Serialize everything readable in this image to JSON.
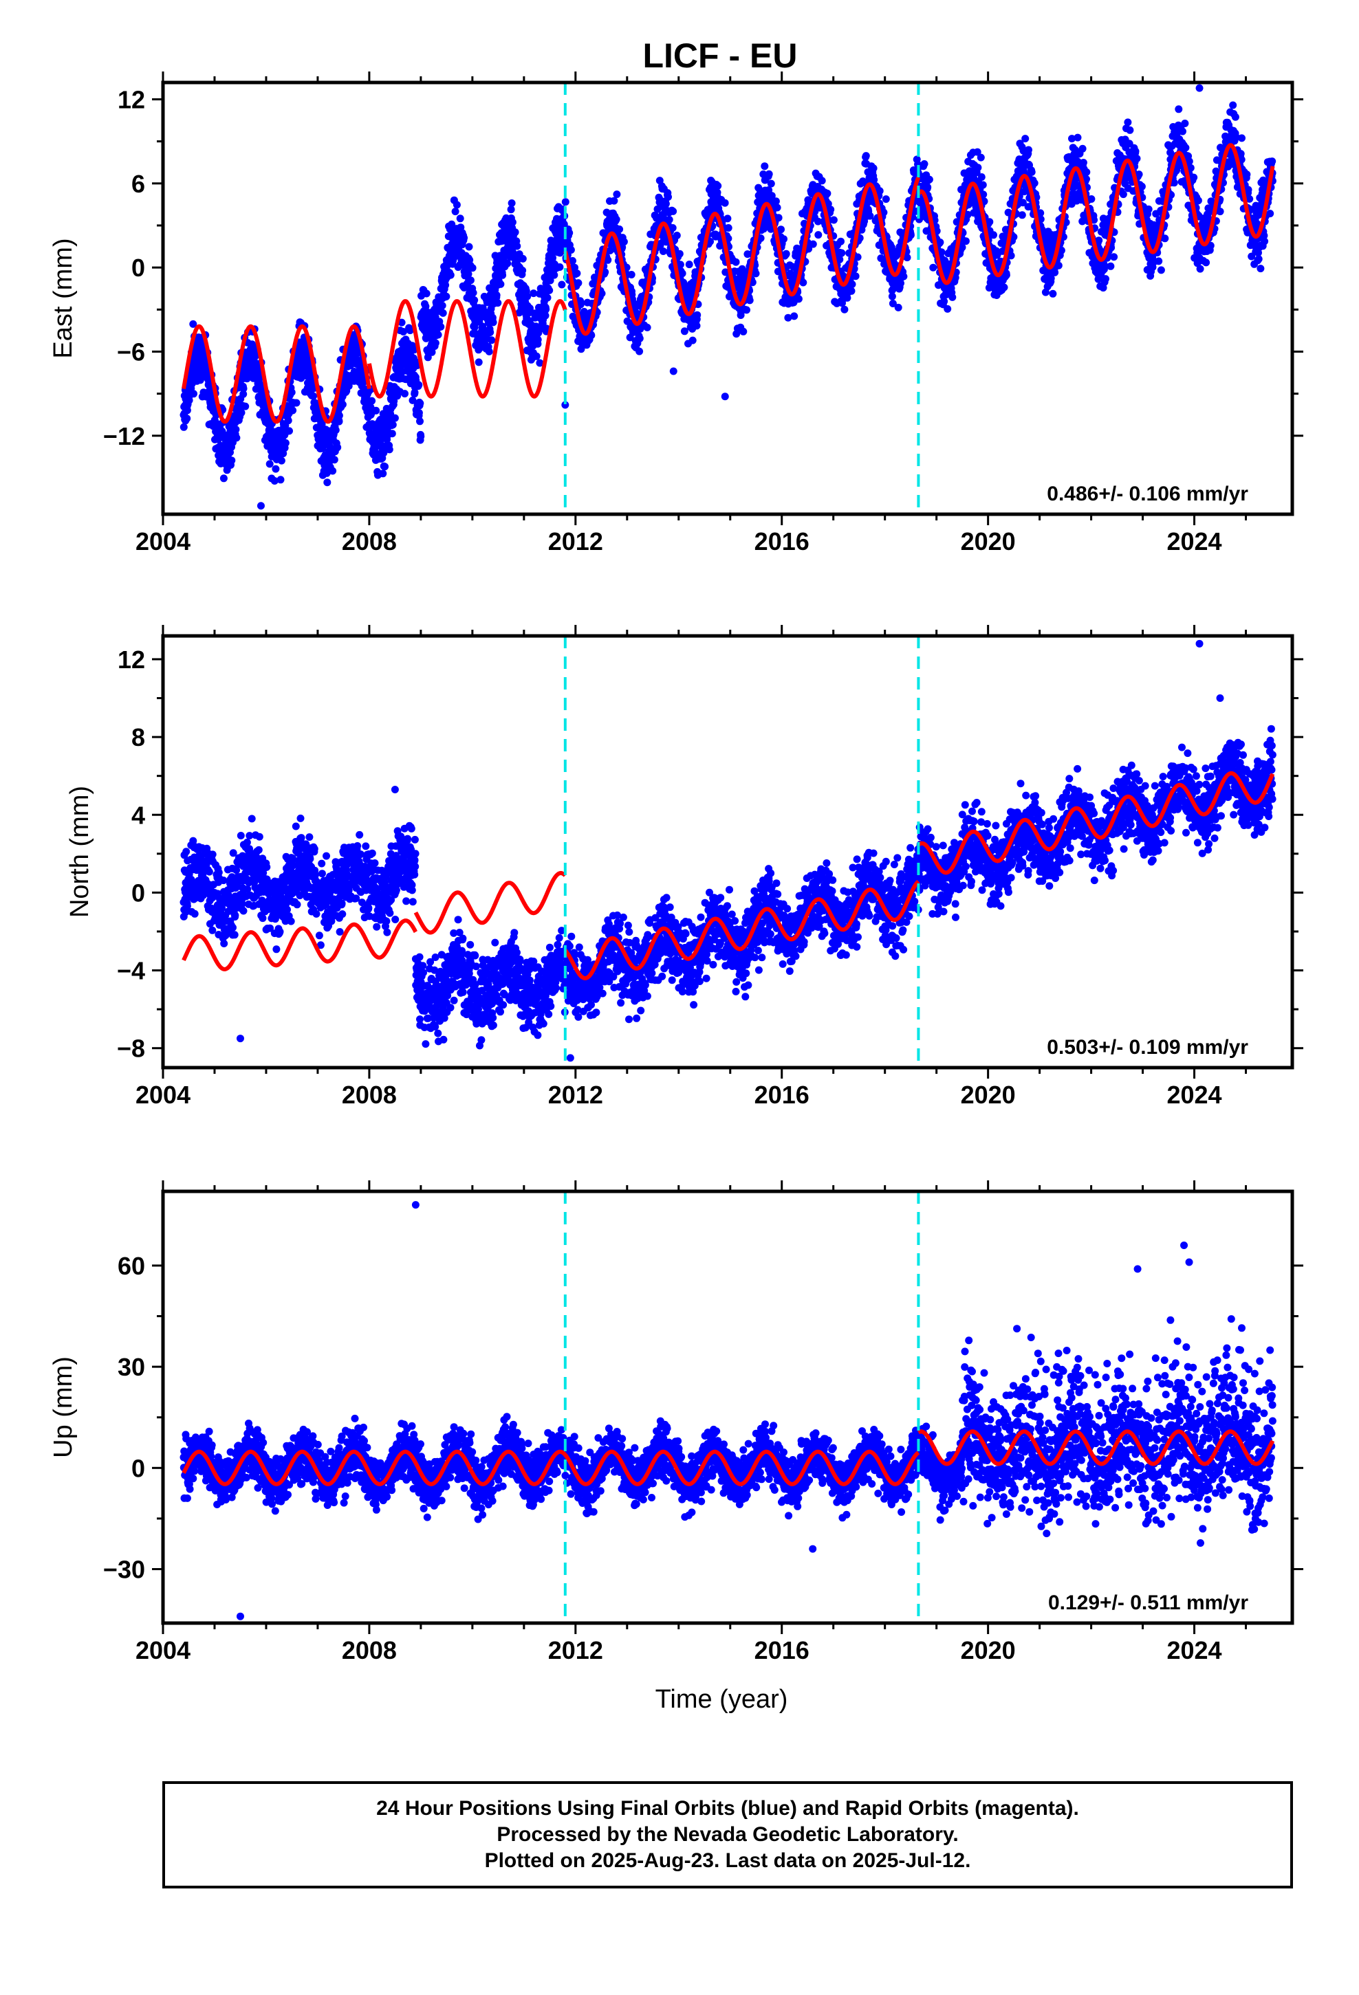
{
  "title": "LICF - EU",
  "x_axis_label": "Time (year)",
  "footer": {
    "line1": "24 Hour Positions Using Final Orbits (blue) and Rapid Orbits (magenta).",
    "line2": "Processed by the Nevada Geodetic Laboratory.",
    "line3": "Plotted on 2025-Aug-23. Last data on 2025-Jul-12."
  },
  "colors": {
    "data": "#0000ff",
    "model": "#ff0000",
    "breaks": "#00e5e5",
    "frame": "#000000"
  },
  "chart_data": [
    {
      "type": "scatter",
      "component": "east",
      "ylabel": "East (mm)",
      "xlim": [
        2004,
        2025.9
      ],
      "ylim": [
        -17.6,
        13.2
      ],
      "x_ticks": [
        "2004",
        "2008",
        "2012",
        "2016",
        "2020",
        "2024"
      ],
      "y_ticks": [
        "12",
        "6",
        "0",
        "-6",
        "-12"
      ],
      "y_tick_values": [
        12,
        6,
        0,
        -6,
        -12
      ],
      "rate_label": "0.486+/- 0.106 mm/yr",
      "breaks": [
        2011.8,
        2018.65
      ],
      "data_span": [
        2004.4,
        2025.52
      ],
      "model": {
        "segments": [
          {
            "from": 2004.4,
            "to": 2008.0,
            "start": -7.6,
            "slope": 0.0,
            "amp": 3.4
          },
          {
            "from": 2008.0,
            "to": 2011.8,
            "start": -5.8,
            "slope": 0.0,
            "amp": 3.4
          },
          {
            "from": 2011.8,
            "to": 2018.65,
            "start": -1.6,
            "slope": 0.7,
            "amp": 3.4
          },
          {
            "from": 2018.65,
            "to": 2025.52,
            "start": 2.0,
            "slope": 0.55,
            "amp": 3.4
          }
        ]
      },
      "scatter": {
        "noise": 1.6,
        "segments": [
          {
            "from": 2004.4,
            "to": 2009.0,
            "start": -9.5,
            "slope": 0.0
          },
          {
            "from": 2009.0,
            "to": 2011.8,
            "start": -1.2,
            "slope": 0.0
          },
          {
            "from": 2011.8,
            "to": 2018.65,
            "start": -1.2,
            "slope": 0.65
          },
          {
            "from": 2018.65,
            "to": 2025.52,
            "start": 2.0,
            "slope": 0.6
          }
        ]
      },
      "outliers": [
        [
          2005.9,
          -17.0
        ],
        [
          2014.9,
          -9.2
        ],
        [
          2011.8,
          -9.8
        ],
        [
          2024.1,
          12.8
        ],
        [
          2013.9,
          -7.4
        ]
      ]
    },
    {
      "type": "scatter",
      "component": "north",
      "ylabel": "North (mm)",
      "xlim": [
        2004,
        2025.9
      ],
      "ylim": [
        -9.0,
        13.2
      ],
      "x_ticks": [
        "2004",
        "2008",
        "2012",
        "2016",
        "2020",
        "2024"
      ],
      "y_ticks": [
        "12",
        "8",
        "4",
        "0",
        "-4",
        "-8"
      ],
      "y_tick_values": [
        12,
        8,
        4,
        0,
        -4,
        -8
      ],
      "rate_label": "0.503+/- 0.109 mm/yr",
      "breaks": [
        2011.8,
        2018.65
      ],
      "data_span": [
        2004.4,
        2025.52
      ],
      "model": {
        "segments": [
          {
            "from": 2004.4,
            "to": 2008.9,
            "start": -3.2,
            "slope": 0.2,
            "amp": 0.9
          },
          {
            "from": 2008.9,
            "to": 2011.8,
            "start": -1.3,
            "slope": 0.5,
            "amp": 0.9
          },
          {
            "from": 2011.8,
            "to": 2018.65,
            "start": -3.7,
            "slope": 0.5,
            "amp": 0.9
          },
          {
            "from": 2018.65,
            "to": 2025.52,
            "start": 1.6,
            "slope": 0.6,
            "amp": 0.9
          }
        ]
      },
      "scatter": {
        "noise": 1.3,
        "segments": [
          {
            "from": 2004.4,
            "to": 2008.9,
            "start": 0.0,
            "slope": 0.2
          },
          {
            "from": 2008.9,
            "to": 2011.8,
            "start": -4.8,
            "slope": 0.0
          },
          {
            "from": 2011.8,
            "to": 2018.65,
            "start": -4.5,
            "slope": 0.7
          },
          {
            "from": 2018.65,
            "to": 2025.52,
            "start": 1.0,
            "slope": 0.72
          }
        ]
      },
      "outliers": [
        [
          2005.5,
          -7.5
        ],
        [
          2024.1,
          12.8
        ],
        [
          2011.9,
          -8.5
        ],
        [
          2024.5,
          10.0
        ],
        [
          2008.5,
          5.3
        ]
      ]
    },
    {
      "type": "scatter",
      "component": "up",
      "ylabel": "Up (mm)",
      "xlim": [
        2004,
        2025.9
      ],
      "ylim": [
        -46,
        82
      ],
      "x_ticks": [
        "2004",
        "2008",
        "2012",
        "2016",
        "2020",
        "2024"
      ],
      "y_ticks": [
        "60",
        "30",
        "0",
        "-30"
      ],
      "y_tick_values": [
        60,
        30,
        0,
        -30
      ],
      "rate_label": "0.129+/- 0.511 mm/yr",
      "breaks": [
        2011.8,
        2018.65
      ],
      "data_span": [
        2004.4,
        2025.52
      ],
      "model": {
        "segments": [
          {
            "from": 2004.4,
            "to": 2018.65,
            "start": 0.0,
            "slope": 0.0,
            "amp": 4.8
          },
          {
            "from": 2018.65,
            "to": 2025.52,
            "start": 6.0,
            "slope": 0.0,
            "amp": 4.8
          }
        ]
      },
      "scatter": {
        "noise": 5.5,
        "segments": [
          {
            "from": 2004.4,
            "to": 2019.5,
            "start": 0.0,
            "slope": 0.0
          },
          {
            "from": 2019.5,
            "to": 2025.52,
            "start": 4.0,
            "slope": 0.0
          }
        ],
        "wide_from": 2019.5,
        "wide_noise": 12.0
      },
      "outliers": [
        [
          2008.9,
          78
        ],
        [
          2005.5,
          -44
        ],
        [
          2016.6,
          -24
        ],
        [
          2023.8,
          66
        ],
        [
          2022.9,
          59
        ],
        [
          2023.9,
          61
        ]
      ]
    }
  ]
}
